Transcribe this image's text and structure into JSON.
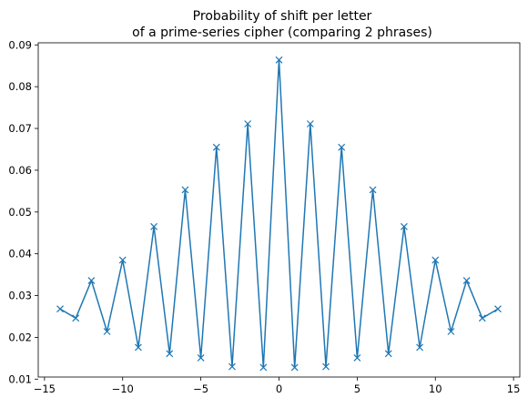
{
  "chart_data": {
    "type": "line",
    "title_lines": [
      "Probability of shift per letter",
      "of a prime-series cipher (comparing 2 phrases)"
    ],
    "xlabel": "",
    "ylabel": "",
    "xlim": [
      -15.4,
      15.4
    ],
    "ylim": [
      0.0105,
      0.0905
    ],
    "xticks": [
      -15,
      -10,
      -5,
      0,
      5,
      10,
      15
    ],
    "xtick_labels": [
      "−15",
      "−10",
      "−5",
      "0",
      "5",
      "10",
      "15"
    ],
    "yticks": [
      0.01,
      0.02,
      0.03,
      0.04,
      0.05,
      0.06,
      0.07,
      0.08,
      0.09
    ],
    "ytick_labels": [
      "0.01",
      "0.02",
      "0.03",
      "0.04",
      "0.05",
      "0.06",
      "0.07",
      "0.08",
      "0.09"
    ],
    "grid": false,
    "legend": "none",
    "marker": "x",
    "color": "#1f77b4",
    "series": [
      {
        "x": [
          -14,
          -13,
          -12,
          -11,
          -10,
          -9,
          -8,
          -7,
          -6,
          -5,
          -4,
          -3,
          -2,
          -1,
          0,
          1,
          2,
          3,
          4,
          5,
          6,
          7,
          8,
          9,
          10,
          11,
          12,
          13,
          14
        ],
        "values": [
          0.0268,
          0.0246,
          0.0336,
          0.0214,
          0.0385,
          0.0176,
          0.0465,
          0.0161,
          0.0553,
          0.0151,
          0.0655,
          0.013,
          0.0711,
          0.0128,
          0.0864,
          0.0128,
          0.0711,
          0.013,
          0.0655,
          0.0151,
          0.0553,
          0.0161,
          0.0465,
          0.0176,
          0.0385,
          0.0214,
          0.0336,
          0.0246,
          0.0268
        ]
      }
    ]
  }
}
